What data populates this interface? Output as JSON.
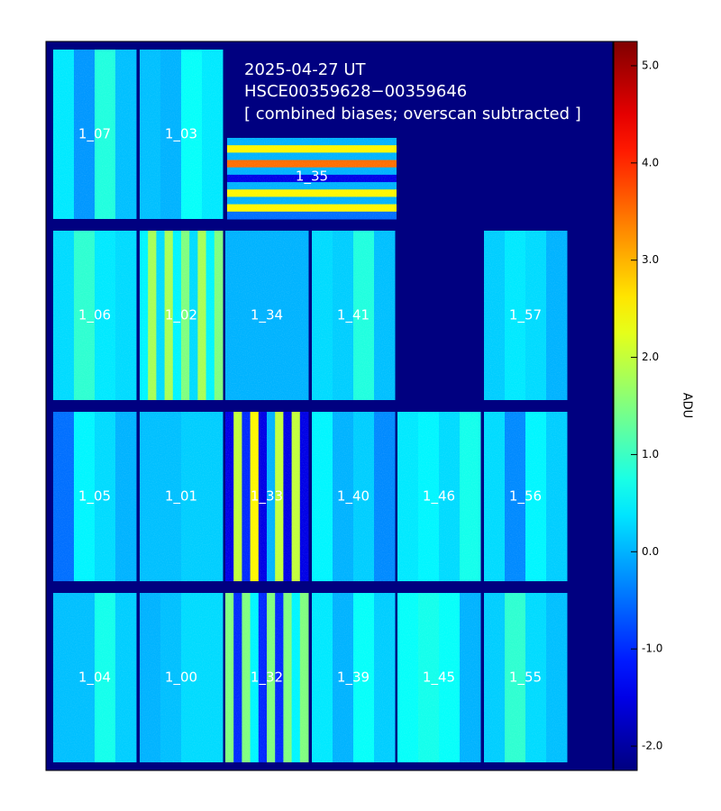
{
  "chart_data": {
    "type": "heatmap",
    "title_lines": [
      "2025-04-27 UT",
      "HSCE00359628−00359646",
      "[ combined biases; overscan subtracted ]"
    ],
    "background_color": "#000080",
    "colormap": "jet",
    "colorbar": {
      "label": "ADU",
      "range": [
        -2.25,
        5.25
      ],
      "ticks": [
        -2.0,
        -1.0,
        0.0,
        1.0,
        2.0,
        3.0,
        4.0,
        5.0
      ],
      "tick_labels": [
        "-2.0",
        "-1.0",
        "0.0",
        "1.0",
        "2.0",
        "3.0",
        "4.0",
        "5.0"
      ]
    },
    "chips": [
      {
        "label": "1_07",
        "orientation": "vertical",
        "profile": [
          0.4,
          -0.2,
          0.8,
          0.1
        ]
      },
      {
        "label": "1_03",
        "orientation": "vertical",
        "profile": [
          0.1,
          0.0,
          0.6,
          0.4
        ]
      },
      {
        "label": "1_35",
        "orientation": "horizontal",
        "profile": [
          0.0,
          2.5,
          0.0,
          3.5,
          0.0,
          -1.5,
          0.0,
          2.5,
          0.0,
          2.5,
          -0.5
        ]
      },
      {
        "label": "1_06",
        "orientation": "vertical",
        "profile": [
          0.3,
          0.9,
          0.4,
          0.3
        ]
      },
      {
        "label": "1_02",
        "orientation": "vertical",
        "profile": [
          0.5,
          1.8,
          0.3,
          1.8,
          0.5,
          1.5,
          0.3,
          1.8,
          0.5,
          1.5
        ]
      },
      {
        "label": "1_34",
        "orientation": "vertical",
        "profile": [
          0.0
        ]
      },
      {
        "label": "1_41",
        "orientation": "vertical",
        "profile": [
          0.3,
          0.2,
          0.8,
          0.1
        ]
      },
      {
        "label": "1_57",
        "orientation": "vertical",
        "profile": [
          0.2,
          0.4,
          0.3,
          0.0
        ]
      },
      {
        "label": "1_05",
        "orientation": "vertical",
        "profile": [
          -0.5,
          0.5,
          0.3,
          0.0
        ]
      },
      {
        "label": "1_01",
        "orientation": "vertical",
        "profile": [
          0.1,
          0.1,
          0.2,
          0.2
        ]
      },
      {
        "label": "1_33",
        "orientation": "vertical",
        "profile": [
          -1.5,
          2.0,
          -1.0,
          2.5,
          -1.5,
          0.0,
          2.0,
          -1.5,
          2.0,
          -1.5
        ]
      },
      {
        "label": "1_40",
        "orientation": "vertical",
        "profile": [
          0.5,
          0.0,
          0.2,
          -0.3
        ]
      },
      {
        "label": "1_46",
        "orientation": "vertical",
        "profile": [
          0.4,
          0.5,
          0.3,
          0.7
        ]
      },
      {
        "label": "1_56",
        "orientation": "vertical",
        "profile": [
          0.3,
          -0.3,
          0.5,
          0.2
        ]
      },
      {
        "label": "1_04",
        "orientation": "vertical",
        "profile": [
          0.1,
          0.1,
          0.7,
          0.2
        ]
      },
      {
        "label": "1_00",
        "orientation": "vertical",
        "profile": [
          0.0,
          0.1,
          0.3,
          0.3
        ]
      },
      {
        "label": "1_32",
        "orientation": "vertical",
        "profile": [
          1.5,
          -1.0,
          1.5,
          0.5,
          -1.0,
          1.5,
          -1.0,
          1.5,
          0.5,
          1.5
        ]
      },
      {
        "label": "1_39",
        "orientation": "vertical",
        "profile": [
          0.4,
          0.0,
          0.6,
          0.2
        ]
      },
      {
        "label": "1_45",
        "orientation": "vertical",
        "profile": [
          0.6,
          0.7,
          0.6,
          0.0
        ]
      },
      {
        "label": "1_55",
        "orientation": "vertical",
        "profile": [
          0.2,
          0.9,
          0.3,
          0.1
        ]
      }
    ]
  }
}
